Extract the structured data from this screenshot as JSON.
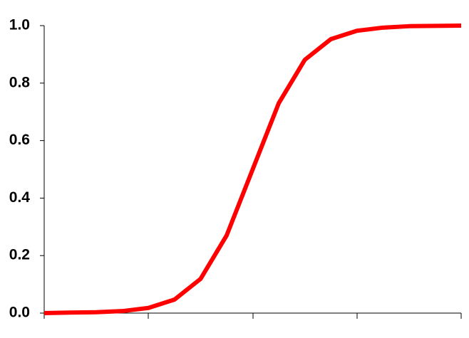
{
  "chart_data": {
    "type": "line",
    "categories": [
      null,
      null,
      null,
      null,
      null,
      null,
      null,
      null,
      null,
      null,
      null,
      null,
      null,
      null,
      null,
      null,
      null
    ],
    "series": [
      {
        "color": "#ff0000",
        "values": [
          0,
          0.002,
          0.003,
          0.007,
          0.018,
          0.047,
          0.119,
          0.27,
          0.5,
          0.73,
          0.881,
          0.953,
          0.982,
          0.993,
          0.998,
          0.999,
          1.0
        ]
      }
    ],
    "ylim": [
      0,
      1
    ],
    "yticks": [
      {
        "value": 0,
        "label": "0.0"
      },
      0.2,
      0.4,
      0.6,
      0.8,
      {
        "value": 1,
        "label": "1.0"
      }
    ]
  }
}
